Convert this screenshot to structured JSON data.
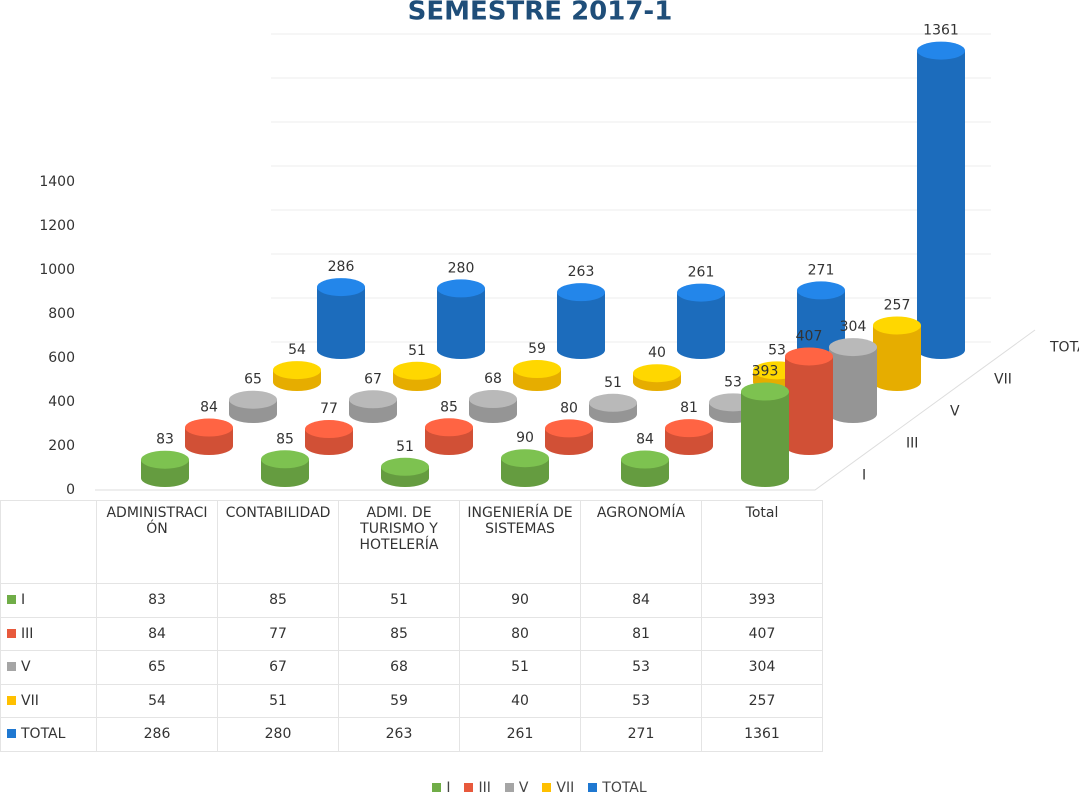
{
  "chart_data": {
    "type": "bar3d",
    "title": "SEMESTRE 2017-1",
    "categories": [
      "ADMINISTRACIÓN",
      "CONTABILIDAD",
      "ADMI. DE TURISMO Y HOTELERÍA",
      "INGENIERÍA DE SISTEMAS",
      "AGRONOMÍA",
      "Total"
    ],
    "series": [
      {
        "name": "I",
        "color": "#70ad47",
        "values": [
          83,
          85,
          51,
          90,
          84,
          393
        ]
      },
      {
        "name": "III",
        "color": "#e8593c",
        "values": [
          84,
          77,
          85,
          80,
          81,
          407
        ]
      },
      {
        "name": "V",
        "color": "#a5a5a5",
        "values": [
          65,
          67,
          68,
          51,
          53,
          304
        ]
      },
      {
        "name": "VII",
        "color": "#ffc000",
        "values": [
          54,
          51,
          59,
          40,
          53,
          257
        ]
      },
      {
        "name": "TOTAL",
        "color": "#1f78d1",
        "values": [
          286,
          280,
          263,
          261,
          271,
          1361
        ]
      }
    ],
    "ylim": [
      0,
      1400
    ],
    "yticks": [
      0,
      200,
      400,
      600,
      800,
      1000,
      1200,
      1400
    ],
    "grid": true,
    "legend": "bottom",
    "data_table": true
  }
}
